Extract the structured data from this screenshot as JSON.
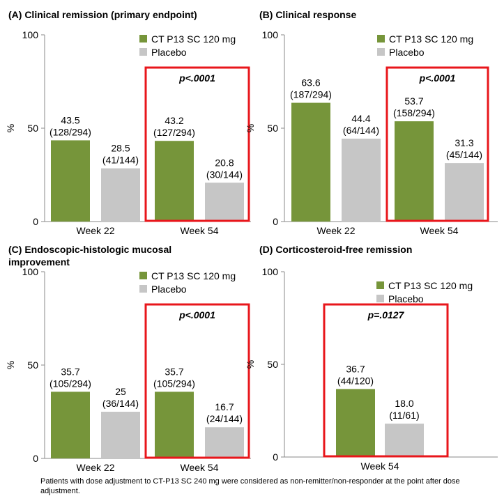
{
  "colors": {
    "ct": "#76953a",
    "placebo": "#c6c6c6",
    "highlight": "#e8161b",
    "axis": "#888888"
  },
  "footnote": "Patients with dose adjustment to CT-P13 SC 240 mg were considered as non-remitter/non-responder at the point after dose adjustment.",
  "chart_data": [
    {
      "type": "bar",
      "title": "(A) Clinical remission (primary endpoint)",
      "title_lines": [
        "(A) Clinical remission (primary endpoint)"
      ],
      "ylabel": "%",
      "ylim": [
        0,
        100
      ],
      "yticks": [
        0,
        50,
        100
      ],
      "categories": [
        "Week 22",
        "Week 54"
      ],
      "series": [
        {
          "name": "CT P13 SC 120 mg",
          "values": [
            43.5,
            43.2
          ],
          "counts": [
            "(128/294)",
            "(127/294)"
          ]
        },
        {
          "name": "Placebo",
          "values": [
            28.5,
            20.8
          ],
          "counts": [
            "(41/144)",
            "(30/144)"
          ]
        }
      ],
      "value_labels": [
        [
          "43.5",
          "43.2"
        ],
        [
          "28.5",
          "20.8"
        ]
      ],
      "highlight": {
        "category": "Week 54",
        "label": "p<.0001"
      }
    },
    {
      "type": "bar",
      "title": "(B) Clinical response",
      "title_lines": [
        "(B) Clinical response"
      ],
      "ylabel": "%",
      "ylim": [
        0,
        100
      ],
      "yticks": [
        0,
        50,
        100
      ],
      "categories": [
        "Week 22",
        "Week 54"
      ],
      "series": [
        {
          "name": "CT P13 SC 120 mg",
          "values": [
            63.6,
            53.7
          ],
          "counts": [
            "(187/294)",
            "(158/294)"
          ]
        },
        {
          "name": "Placebo",
          "values": [
            44.4,
            31.3
          ],
          "counts": [
            "(64/144)",
            "(45/144)"
          ]
        }
      ],
      "value_labels": [
        [
          "63.6",
          "53.7"
        ],
        [
          "44.4",
          "31.3"
        ]
      ],
      "highlight": {
        "category": "Week 54",
        "label": "p<.0001"
      }
    },
    {
      "type": "bar",
      "title": "(C) Endoscopic-histologic mucosal improvement",
      "title_lines": [
        "(C) Endoscopic-histologic mucosal",
        "improvement"
      ],
      "ylabel": "%",
      "ylim": [
        0,
        100
      ],
      "yticks": [
        0,
        50,
        100
      ],
      "categories": [
        "Week 22",
        "Week 54"
      ],
      "series": [
        {
          "name": "CT P13 SC 120 mg",
          "values": [
            35.7,
            35.7
          ],
          "counts": [
            "(105/294)",
            "(105/294)"
          ]
        },
        {
          "name": "Placebo",
          "values": [
            25,
            16.7
          ],
          "counts": [
            "(36/144)",
            "(24/144)"
          ]
        }
      ],
      "value_labels": [
        [
          "35.7",
          "35.7"
        ],
        [
          "25",
          "16.7"
        ]
      ],
      "highlight": {
        "category": "Week 54",
        "label": "p<.0001"
      }
    },
    {
      "type": "bar",
      "title": "(D) Corticosteroid-free remission",
      "title_lines": [
        "(D) Corticosteroid-free remission"
      ],
      "ylabel": "%",
      "ylim": [
        0,
        100
      ],
      "yticks": [
        0,
        50,
        100
      ],
      "categories": [
        "Week 54"
      ],
      "series": [
        {
          "name": "CT P13 SC 120 mg",
          "values": [
            36.7
          ],
          "counts": [
            "(44/120)"
          ]
        },
        {
          "name": "Placebo",
          "values": [
            18.0
          ],
          "counts": [
            "(11/61)"
          ]
        }
      ],
      "value_labels": [
        [
          "36.7"
        ],
        [
          "18.0"
        ]
      ],
      "highlight": {
        "category": "Week 54",
        "label": "p=.0127"
      }
    }
  ]
}
